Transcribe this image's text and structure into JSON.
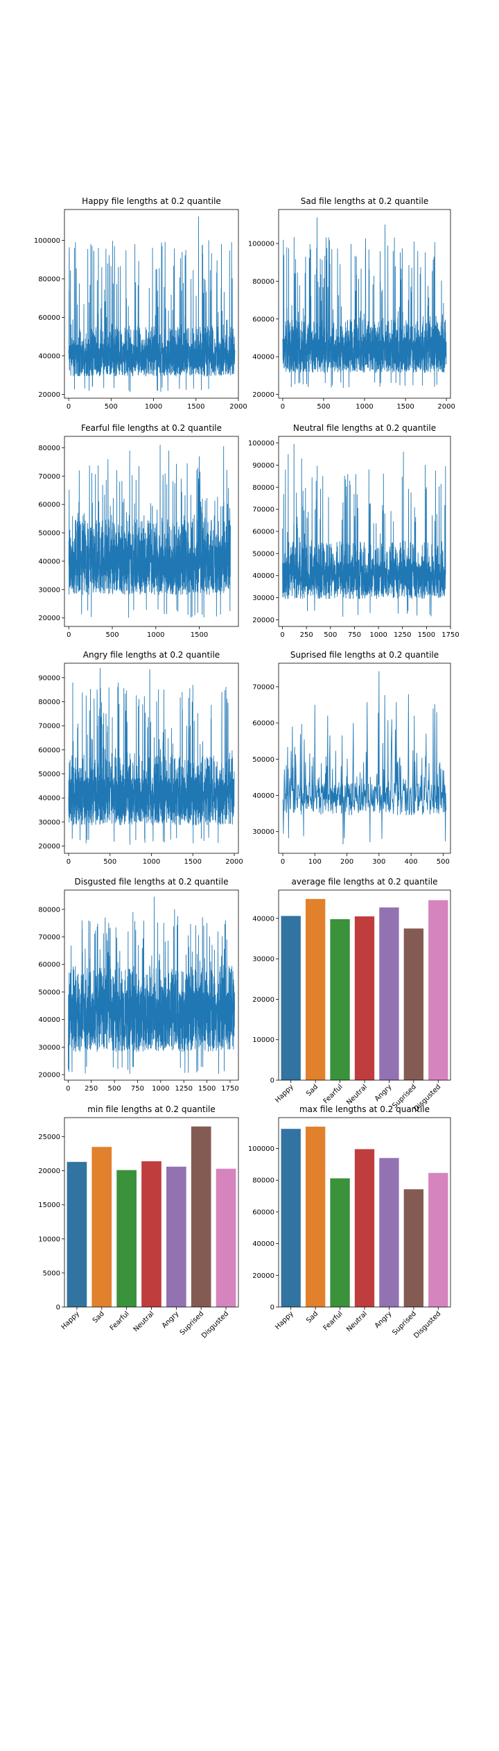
{
  "chart_data": [
    {
      "type": "line",
      "title": "Happy file lengths at 0.2 quantile",
      "xlim": [
        -50,
        2000
      ],
      "ylim": [
        18000,
        116000
      ],
      "xticks": [
        "0",
        "500",
        "1000",
        "1500",
        "2000"
      ],
      "yticks": [
        "20000",
        "40000",
        "60000",
        "80000",
        "100000"
      ],
      "color": "#1f77b4",
      "series_summary": {
        "count": 1960,
        "min": 21300,
        "max": 112400,
        "mean": 40600
      },
      "peaks": [
        [
          80,
          99000
        ],
        [
          350,
          96000
        ],
        [
          540,
          97000
        ],
        [
          780,
          98000
        ],
        [
          1100,
          97000
        ],
        [
          1380,
          95000
        ],
        [
          1530,
          112400
        ],
        [
          1650,
          100000
        ],
        [
          1800,
          98000
        ],
        [
          1920,
          99000
        ]
      ]
    },
    {
      "type": "line",
      "title": "Sad file lengths at 0.2 quantile",
      "xlim": [
        -50,
        2050
      ],
      "ylim": [
        18000,
        118000
      ],
      "xticks": [
        "0",
        "500",
        "1000",
        "1500",
        "2000"
      ],
      "yticks": [
        "20000",
        "40000",
        "60000",
        "80000",
        "100000"
      ],
      "color": "#1f77b4",
      "series_summary": {
        "count": 2000,
        "min": 23500,
        "max": 113800,
        "mean": 44800
      },
      "peaks": [
        [
          50,
          98000
        ],
        [
          280,
          93000
        ],
        [
          420,
          113800
        ],
        [
          600,
          97000
        ],
        [
          900,
          93000
        ],
        [
          1250,
          110000
        ],
        [
          1350,
          96000
        ],
        [
          1650,
          96000
        ],
        [
          1850,
          93000
        ]
      ]
    },
    {
      "type": "line",
      "title": "Fearful file lengths at 0.2 quantile",
      "xlim": [
        -50,
        1950
      ],
      "ylim": [
        17000,
        84000
      ],
      "xticks": [
        "0",
        "500",
        "1000",
        "1500"
      ],
      "yticks": [
        "20000",
        "30000",
        "40000",
        "50000",
        "60000",
        "70000",
        "80000"
      ],
      "color": "#1f77b4",
      "series_summary": {
        "count": 1860,
        "min": 20100,
        "max": 81200,
        "mean": 39800
      },
      "peaks": [
        [
          120,
          72000
        ],
        [
          450,
          76000
        ],
        [
          700,
          79000
        ],
        [
          1050,
          81000
        ],
        [
          1150,
          79000
        ],
        [
          1500,
          77000
        ],
        [
          1780,
          80500
        ]
      ]
    },
    {
      "type": "line",
      "title": "Neutral file lengths at 0.2 quantile",
      "xlim": [
        -40,
        1750
      ],
      "ylim": [
        17000,
        103000
      ],
      "xticks": [
        "0",
        "250",
        "500",
        "750",
        "1000",
        "1250",
        "1500",
        "1750"
      ],
      "yticks": [
        "20000",
        "30000",
        "40000",
        "50000",
        "60000",
        "70000",
        "80000",
        "90000",
        "100000"
      ],
      "color": "#1f77b4",
      "series_summary": {
        "count": 1700,
        "min": 21400,
        "max": 99600,
        "mean": 40500
      },
      "peaks": [
        [
          60,
          95000
        ],
        [
          120,
          99600
        ],
        [
          200,
          93000
        ],
        [
          420,
          85000
        ],
        [
          680,
          86000
        ],
        [
          900,
          88000
        ],
        [
          1260,
          96000
        ],
        [
          1500,
          80000
        ]
      ]
    },
    {
      "type": "line",
      "title": "Angry file lengths at 0.2 quantile",
      "xlim": [
        -50,
        2050
      ],
      "ylim": [
        17000,
        96000
      ],
      "xticks": [
        "0",
        "500",
        "1000",
        "1500",
        "2000"
      ],
      "yticks": [
        "20000",
        "30000",
        "40000",
        "50000",
        "60000",
        "70000",
        "80000",
        "90000"
      ],
      "color": "#1f77b4",
      "series_summary": {
        "count": 2000,
        "min": 20600,
        "max": 94000,
        "mean": 42700
      },
      "peaks": [
        [
          50,
          88000
        ],
        [
          380,
          94000
        ],
        [
          600,
          88000
        ],
        [
          980,
          93500
        ],
        [
          1150,
          85000
        ],
        [
          1500,
          87000
        ],
        [
          1850,
          84000
        ]
      ]
    },
    {
      "type": "line",
      "title": "Suprised file lengths at 0.2 quantile",
      "xlim": [
        -13,
        523
      ],
      "ylim": [
        24000,
        76500
      ],
      "xticks": [
        "0",
        "100",
        "200",
        "300",
        "400",
        "500"
      ],
      "yticks": [
        "30000",
        "40000",
        "50000",
        "60000",
        "70000"
      ],
      "color": "#1f77b4",
      "series_summary": {
        "count": 510,
        "min": 26500,
        "max": 74300,
        "mean": 37500
      },
      "peaks": [
        [
          30,
          59000
        ],
        [
          100,
          65000
        ],
        [
          140,
          62000
        ],
        [
          220,
          60000
        ],
        [
          300,
          74300
        ],
        [
          340,
          61000
        ],
        [
          410,
          62000
        ],
        [
          480,
          63000
        ]
      ]
    },
    {
      "type": "line",
      "title": "Disgusted file lengths at 0.2 quantile",
      "xlim": [
        -40,
        1840
      ],
      "ylim": [
        18000,
        87000
      ],
      "xticks": [
        "0",
        "250",
        "500",
        "750",
        "1000",
        "1250",
        "1500",
        "1750"
      ],
      "yticks": [
        "20000",
        "30000",
        "40000",
        "50000",
        "60000",
        "70000",
        "80000"
      ],
      "color": "#1f77b4",
      "series_summary": {
        "count": 1800,
        "min": 20300,
        "max": 84600,
        "mean": 44500
      },
      "peaks": [
        [
          150,
          76000
        ],
        [
          400,
          77000
        ],
        [
          700,
          79000
        ],
        [
          930,
          84600
        ],
        [
          1150,
          80000
        ],
        [
          1500,
          75000
        ],
        [
          1700,
          76000
        ]
      ]
    },
    {
      "type": "bar",
      "title": "average file lengths at 0.2 quantile",
      "categories": [
        "Happy",
        "Sad",
        "Fearful",
        "Neutral",
        "Angry",
        "Suprised",
        "Disgusted"
      ],
      "values": [
        40600,
        44800,
        39800,
        40500,
        42700,
        37500,
        44500
      ],
      "ylim": [
        0,
        47000
      ],
      "yticks": [
        "0",
        "10000",
        "20000",
        "30000",
        "40000"
      ],
      "colors": [
        "#3274a1",
        "#e1812c",
        "#3a923a",
        "#c03d3e",
        "#9372b2",
        "#845b53",
        "#d684bd"
      ]
    },
    {
      "type": "bar",
      "title": "min file lengths at 0.2 quantile",
      "categories": [
        "Happy",
        "Sad",
        "Fearful",
        "Neutral",
        "Angry",
        "Suprised",
        "Disgusted"
      ],
      "values": [
        21300,
        23500,
        20100,
        21400,
        20600,
        26500,
        20300
      ],
      "ylim": [
        0,
        27800
      ],
      "yticks": [
        "0",
        "5000",
        "10000",
        "15000",
        "20000",
        "25000"
      ],
      "colors": [
        "#3274a1",
        "#e1812c",
        "#3a923a",
        "#c03d3e",
        "#9372b2",
        "#845b53",
        "#d684bd"
      ]
    },
    {
      "type": "bar",
      "title": "max file lengths at 0.2 quantile",
      "categories": [
        "Happy",
        "Sad",
        "Fearful",
        "Neutral",
        "Angry",
        "Suprised",
        "Disgusted"
      ],
      "values": [
        112400,
        113800,
        81200,
        99600,
        94000,
        74300,
        84600
      ],
      "ylim": [
        0,
        119500
      ],
      "yticks": [
        "0",
        "20000",
        "40000",
        "60000",
        "80000",
        "100000"
      ],
      "colors": [
        "#3274a1",
        "#e1812c",
        "#3a923a",
        "#c03d3e",
        "#9372b2",
        "#845b53",
        "#d684bd"
      ]
    }
  ]
}
